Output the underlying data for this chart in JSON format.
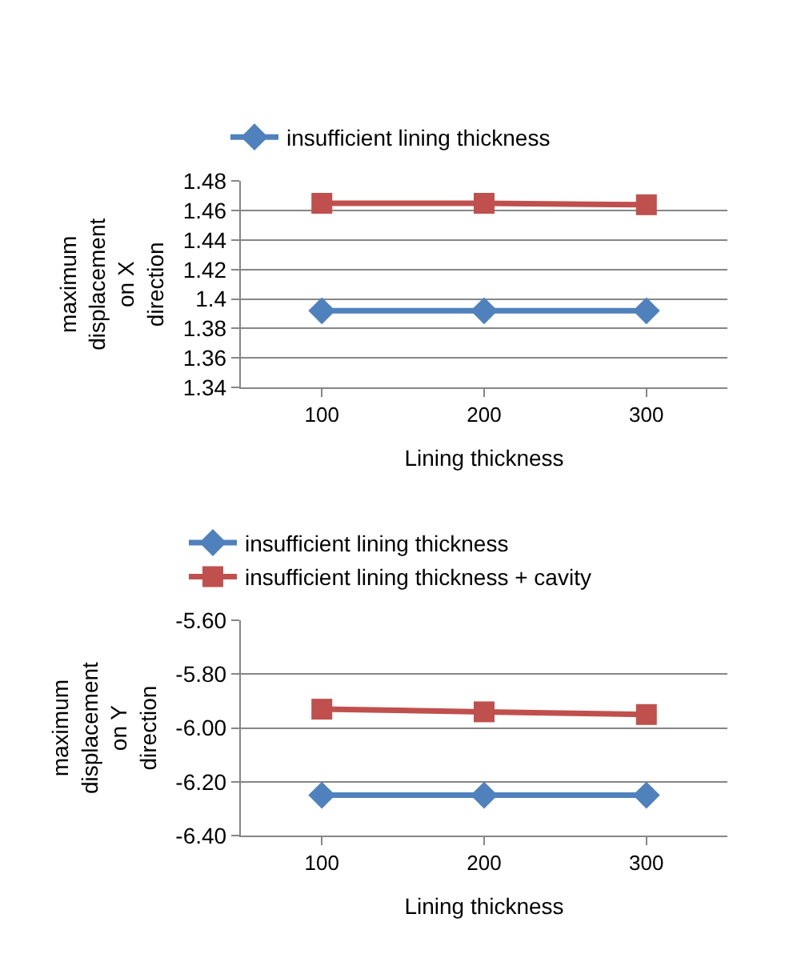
{
  "chart_data": [
    {
      "type": "line",
      "xlabel": "Lining thickness",
      "ylabel": "maximum displacement on X direction",
      "categories": [
        "100",
        "200",
        "300"
      ],
      "ylim": [
        1.34,
        1.48
      ],
      "yticks": [
        1.34,
        1.36,
        1.38,
        {
          "value": 1.4,
          "label": "1.4"
        },
        1.42,
        1.44,
        1.46,
        1.48
      ],
      "grid": "y",
      "legend": "top",
      "series": [
        {
          "name": "insufficient lining thickness",
          "color": "#4f81bd",
          "marker": "diamond",
          "values": [
            1.392,
            1.392,
            1.392
          ]
        },
        {
          "color": "#c0504d",
          "marker": "square",
          "values": [
            1.465,
            1.465,
            1.464
          ]
        }
      ]
    },
    {
      "type": "line",
      "xlabel": "Lining thickness",
      "ylabel": "maximum displacement on Y direction",
      "categories": [
        "100",
        "200",
        "300"
      ],
      "ylim": [
        -6.4,
        -5.6
      ],
      "yticks": [
        {
          "value": -6.4,
          "label": "-6.40"
        },
        {
          "value": -6.2,
          "label": "-6.20"
        },
        {
          "value": -6.0,
          "label": "-6.00"
        },
        {
          "value": -5.8,
          "label": "-5.80"
        },
        {
          "value": -5.6,
          "label": "-5.60"
        }
      ],
      "grid": "y",
      "legend": "top",
      "series": [
        {
          "name": "insufficient lining thickness",
          "color": "#4f81bd",
          "marker": "diamond",
          "values": [
            -6.25,
            -6.25,
            -6.25
          ]
        },
        {
          "name": "insufficient lining thickness + cavity",
          "color": "#c0504d",
          "marker": "square",
          "values": [
            -5.93,
            -5.94,
            -5.95
          ]
        }
      ]
    }
  ]
}
